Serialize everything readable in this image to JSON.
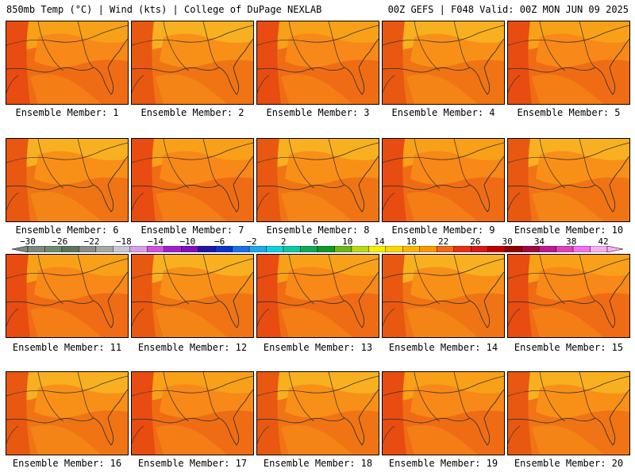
{
  "header": {
    "left_title": "850mb Temp (°C) | Wind (kts) | College of DuPage NEXLAB",
    "right_title": "00Z GEFS | F048 Valid: 00Z MON JUN 09 2025"
  },
  "panels": [
    {
      "label": "Ensemble Member: 1"
    },
    {
      "label": "Ensemble Member: 2"
    },
    {
      "label": "Ensemble Member: 3"
    },
    {
      "label": "Ensemble Member: 4"
    },
    {
      "label": "Ensemble Member: 5"
    },
    {
      "label": "Ensemble Member: 6"
    },
    {
      "label": "Ensemble Member: 7"
    },
    {
      "label": "Ensemble Member: 8"
    },
    {
      "label": "Ensemble Member: 9"
    },
    {
      "label": "Ensemble Member: 10"
    },
    {
      "label": "Ensemble Member: 11"
    },
    {
      "label": "Ensemble Member: 12"
    },
    {
      "label": "Ensemble Member: 13"
    },
    {
      "label": "Ensemble Member: 14"
    },
    {
      "label": "Ensemble Member: 15"
    },
    {
      "label": "Ensemble Member: 16"
    },
    {
      "label": "Ensemble Member: 17"
    },
    {
      "label": "Ensemble Member: 18"
    },
    {
      "label": "Ensemble Member: 19"
    },
    {
      "label": "Ensemble Member: 20"
    }
  ],
  "colorbar": {
    "labels": [
      "−30",
      "−26",
      "−22",
      "−18",
      "−14",
      "−10",
      "−6",
      "−2",
      "2",
      "6",
      "10",
      "14",
      "18",
      "22",
      "26",
      "30",
      "34",
      "38",
      "42"
    ],
    "colors": [
      "#7e887e",
      "#6f8a6f",
      "#5c7560",
      "#8c8c8c",
      "#a7a7a7",
      "#c8c8d8",
      "#d7a0e6",
      "#d050e0",
      "#a020d0",
      "#8010c0",
      "#2018a8",
      "#0a34d0",
      "#1e70e8",
      "#20a8f0",
      "#10d0e0",
      "#10c8a0",
      "#10a858",
      "#109828",
      "#68b818",
      "#b8d818",
      "#f0f000",
      "#f8d800",
      "#f8b800",
      "#f89800",
      "#f06818",
      "#e83010",
      "#d81818",
      "#c00000",
      "#900000",
      "#a00840",
      "#c01890",
      "#e040c0",
      "#f070f0",
      "#f8b0f0"
    ]
  }
}
